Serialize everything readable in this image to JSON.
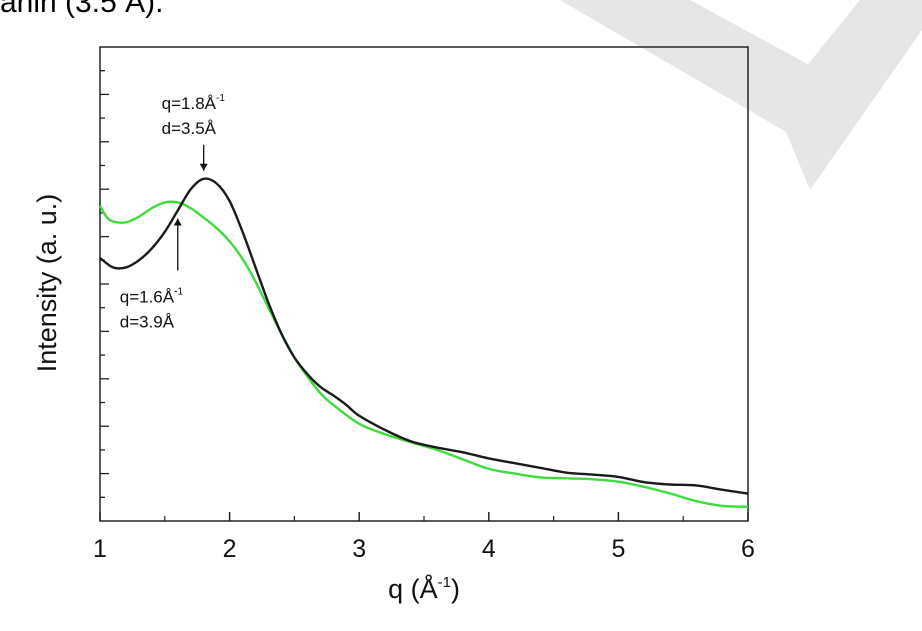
{
  "header_fragment": "anin (3.5 Å).",
  "chart_data": {
    "type": "line",
    "title": "",
    "xlabel": "q (Å⁻¹)",
    "ylabel": "Intensity (a. u.)",
    "xlim": [
      1,
      6
    ],
    "ylim": [
      0,
      1
    ],
    "y_tick_labels": "none",
    "x_ticks": [
      1,
      2,
      3,
      4,
      5,
      6
    ],
    "grid": false,
    "legend": "none",
    "series": [
      {
        "color": "#1a1a1a",
        "x": [
          1.0,
          1.1,
          1.2,
          1.3,
          1.4,
          1.5,
          1.6,
          1.7,
          1.8,
          1.9,
          2.0,
          2.1,
          2.2,
          2.3,
          2.4,
          2.5,
          2.6,
          2.7,
          2.8,
          2.9,
          3.0,
          3.2,
          3.4,
          3.6,
          3.8,
          4.0,
          4.2,
          4.4,
          4.6,
          4.8,
          5.0,
          5.2,
          5.4,
          5.6,
          5.8,
          6.0
        ],
        "y": [
          0.555,
          0.535,
          0.535,
          0.55,
          0.575,
          0.61,
          0.655,
          0.7,
          0.722,
          0.712,
          0.675,
          0.61,
          0.535,
          0.46,
          0.395,
          0.345,
          0.31,
          0.283,
          0.265,
          0.245,
          0.222,
          0.192,
          0.168,
          0.155,
          0.145,
          0.132,
          0.122,
          0.112,
          0.102,
          0.098,
          0.093,
          0.082,
          0.077,
          0.075,
          0.066,
          0.058
        ]
      },
      {
        "color": "#3ddc3d",
        "x": [
          1.0,
          1.05,
          1.1,
          1.2,
          1.3,
          1.4,
          1.5,
          1.6,
          1.7,
          1.8,
          1.9,
          2.0,
          2.1,
          2.2,
          2.3,
          2.4,
          2.5,
          2.6,
          2.7,
          2.8,
          3.0,
          3.2,
          3.4,
          3.6,
          3.8,
          4.0,
          4.2,
          4.4,
          4.6,
          4.8,
          5.0,
          5.2,
          5.4,
          5.6,
          5.8,
          6.0
        ],
        "y": [
          0.665,
          0.642,
          0.632,
          0.63,
          0.642,
          0.66,
          0.672,
          0.672,
          0.66,
          0.64,
          0.618,
          0.59,
          0.553,
          0.505,
          0.45,
          0.395,
          0.345,
          0.305,
          0.27,
          0.245,
          0.205,
          0.183,
          0.166,
          0.15,
          0.13,
          0.11,
          0.1,
          0.092,
          0.09,
          0.088,
          0.083,
          0.072,
          0.058,
          0.042,
          0.032,
          0.03
        ]
      }
    ],
    "annotations": [
      {
        "line1": "q=1.8Å",
        "sup": "-1",
        "line2": "d=3.5Å",
        "x": 1.8,
        "y": 0.722,
        "direction": "down"
      },
      {
        "line1": "q=1.6Å",
        "sup": "-1",
        "line2": "d=3.9Å",
        "x": 1.6,
        "y": 0.655,
        "direction": "up"
      }
    ]
  }
}
